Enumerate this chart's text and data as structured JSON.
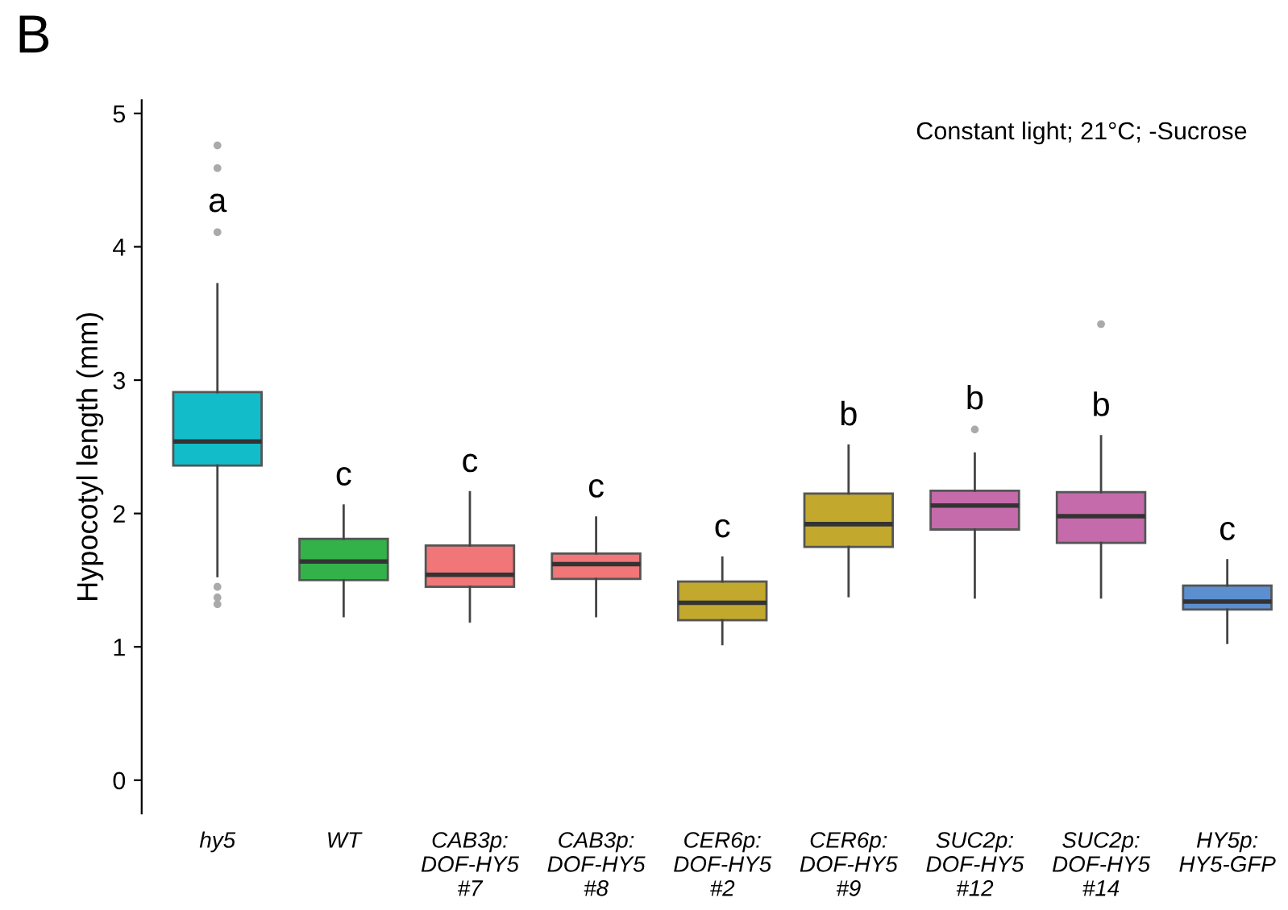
{
  "chart_data": {
    "type": "box",
    "ylabel": "Hypocotyl length (mm)",
    "categories": [
      "hy5",
      "WT",
      "CAB3p:\nDOF-HY5\n#7",
      "CAB3p:\nDOF-HY5\n#8",
      "CER6p:\nDOF-HY5\n#2",
      "CER6p:\nDOF-HY5\n#9",
      "SUC2p:\nDOF-HY5\n#12",
      "SUC2p:\nDOF-HY5\n#14",
      "HY5p:\nHY5-GFP"
    ],
    "colors": [
      "#12bcc8",
      "#33b24a",
      "#f07677",
      "#f07677",
      "#c2a92d",
      "#c2a92d",
      "#c56aaa",
      "#c56aaa",
      "#5b8fd0"
    ],
    "boxes": [
      {
        "low": 1.53,
        "q1": 2.36,
        "median": 2.54,
        "q3": 2.91,
        "high": 3.72,
        "outliers": [
          4.76,
          4.59,
          4.11,
          1.45,
          1.37,
          1.32
        ]
      },
      {
        "low": 1.23,
        "q1": 1.5,
        "median": 1.64,
        "q3": 1.81,
        "high": 2.06
      },
      {
        "low": 1.19,
        "q1": 1.45,
        "median": 1.54,
        "q3": 1.76,
        "high": 2.16
      },
      {
        "low": 1.23,
        "q1": 1.51,
        "median": 1.62,
        "q3": 1.7,
        "high": 1.97
      },
      {
        "low": 1.02,
        "q1": 1.2,
        "median": 1.33,
        "q3": 1.49,
        "high": 1.67
      },
      {
        "low": 1.38,
        "q1": 1.75,
        "median": 1.92,
        "q3": 2.15,
        "high": 2.51
      },
      {
        "low": 1.37,
        "q1": 1.88,
        "median": 2.06,
        "q3": 2.17,
        "high": 2.45,
        "outliers": [
          2.63
        ]
      },
      {
        "low": 1.37,
        "q1": 1.78,
        "median": 1.98,
        "q3": 2.16,
        "high": 2.58,
        "outliers": [
          3.42
        ]
      },
      {
        "low": 1.03,
        "q1": 1.28,
        "median": 1.34,
        "q3": 1.46,
        "high": 1.65
      }
    ],
    "ylim": [
      -0.25,
      5.1
    ],
    "yticks": [
      0,
      1,
      2,
      3,
      4,
      5
    ],
    "grid": false,
    "annotations": [
      "B",
      "Constant light; 21°C; -Sucrose",
      "a",
      "c",
      "c",
      "c",
      "c",
      "b",
      "b",
      "b",
      "c"
    ]
  }
}
